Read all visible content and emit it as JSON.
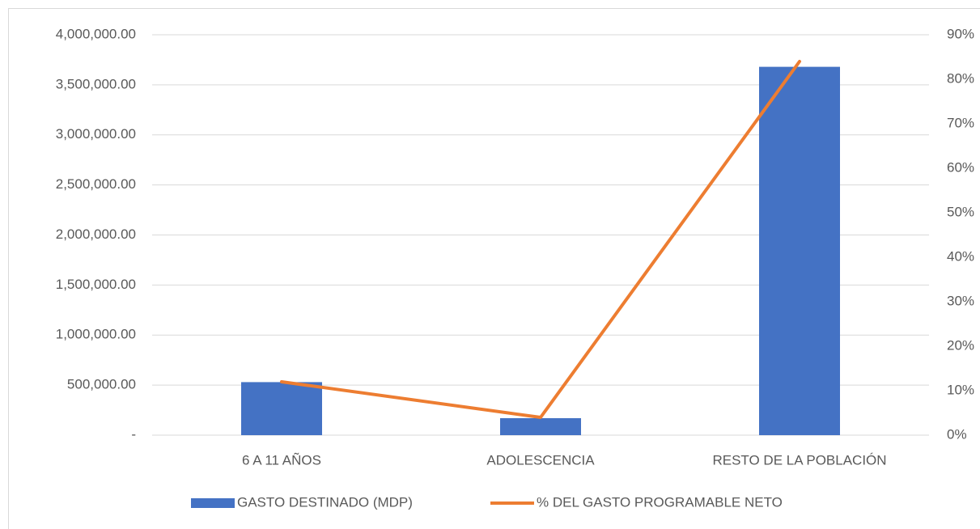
{
  "chart_data": {
    "type": "bar",
    "categories": [
      "6 A 11 AÑOS",
      "ADOLESCENCIA",
      "RESTO DE LA POBLACIÓN"
    ],
    "series": [
      {
        "name": "GASTO DESTINADO (MDP)",
        "type": "bar",
        "color": "#4472c4",
        "values": [
          530000,
          170000,
          3680000
        ]
      },
      {
        "name": "% DEL GASTO PROGRAMABLE NETO",
        "type": "line",
        "axis": "y2",
        "color": "#ed7d31",
        "values": [
          12,
          4,
          84
        ]
      }
    ],
    "ylim": [
      0,
      4000000
    ],
    "yticks": [
      {
        "value": 0,
        "label": "-"
      },
      {
        "value": 500000,
        "label": "500,000.00"
      },
      {
        "value": 1000000,
        "label": "1,000,000.00"
      },
      {
        "value": 1500000,
        "label": "1,500,000.00"
      },
      {
        "value": 2000000,
        "label": "2,000,000.00"
      },
      {
        "value": 2500000,
        "label": "2,500,000.00"
      },
      {
        "value": 3000000,
        "label": "3,000,000.00"
      },
      {
        "value": 3500000,
        "label": "3,500,000.00"
      },
      {
        "value": 4000000,
        "label": "4,000,000.00"
      }
    ],
    "y2lim": [
      0,
      90
    ],
    "y2ticks": [
      {
        "value": 0,
        "label": "0%"
      },
      {
        "value": 10,
        "label": "10%"
      },
      {
        "value": 20,
        "label": "20%"
      },
      {
        "value": 30,
        "label": "30%"
      },
      {
        "value": 40,
        "label": "40%"
      },
      {
        "value": 50,
        "label": "50%"
      },
      {
        "value": 60,
        "label": "60%"
      },
      {
        "value": 70,
        "label": "70%"
      },
      {
        "value": 80,
        "label": "80%"
      },
      {
        "value": 90,
        "label": "90%"
      }
    ],
    "grid": true,
    "legend": "bottom"
  }
}
